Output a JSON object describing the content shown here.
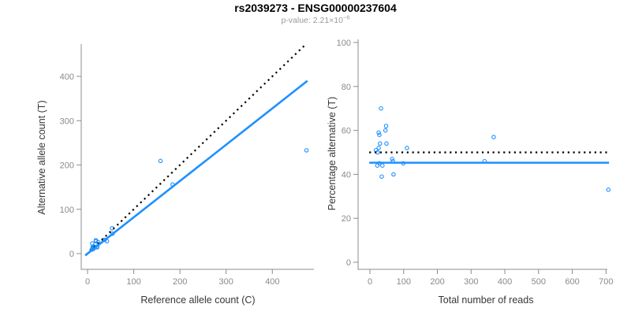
{
  "title": "rs2039273 - ENSG00000237604",
  "subtitle": {
    "prefix": "p-value: 2.21×10",
    "exponent": "−6"
  },
  "colors": {
    "accent_blue": "#1E90FF",
    "reference_line_black": "#000000",
    "axis_gray": "#8C8C8C",
    "tick_label_gray": "#8A8A8A",
    "axis_title_color": "#373737",
    "subtitle_gray": "#9A9A9A",
    "title_color": "#000000",
    "background": "#FFFFFF"
  },
  "chart_data": [
    {
      "type": "scatter",
      "panel": "left",
      "xlabel": "Reference allele count (C)",
      "ylabel": "Alternative allele count (T)",
      "xticks": [
        0,
        100,
        200,
        300,
        400
      ],
      "yticks": [
        0,
        100,
        200,
        300,
        400
      ],
      "xlim": [
        0,
        475
      ],
      "ylim": [
        0,
        470
      ],
      "grid": false,
      "marker": "open-circle",
      "points": [
        [
          10,
          23
        ],
        [
          18,
          30
        ],
        [
          18,
          28
        ],
        [
          11,
          15
        ],
        [
          12,
          16
        ],
        [
          14,
          16
        ],
        [
          23,
          26
        ],
        [
          12,
          14
        ],
        [
          9,
          9
        ],
        [
          11,
          12
        ],
        [
          53,
          57
        ],
        [
          35,
          31
        ],
        [
          37,
          31
        ],
        [
          15,
          13
        ],
        [
          21,
          16
        ],
        [
          12,
          10
        ],
        [
          54,
          45
        ],
        [
          21,
          14
        ],
        [
          42,
          28
        ],
        [
          184,
          156
        ],
        [
          158,
          209
        ],
        [
          474,
          233
        ]
      ],
      "identity_line": {
        "style": "dotted",
        "color": "black",
        "slope": 1,
        "from": [
          -3,
          -3
        ],
        "to": [
          470,
          470
        ]
      },
      "fit_line": {
        "style": "solid",
        "color": "blue",
        "slope": 0.82,
        "from": [
          -5,
          -4.1
        ],
        "to": [
          476,
          390
        ]
      }
    },
    {
      "type": "scatter",
      "panel": "right",
      "xlabel": "Total number of reads",
      "ylabel": "Percentage alternative (T)",
      "xticks": [
        0,
        100,
        200,
        300,
        400,
        500,
        600,
        700
      ],
      "yticks": [
        0,
        20,
        40,
        60,
        80,
        100
      ],
      "xlim": [
        0,
        710
      ],
      "ylim": [
        0,
        100
      ],
      "grid": false,
      "marker": "open-circle",
      "points": [
        [
          33,
          70
        ],
        [
          48,
          62
        ],
        [
          46,
          60
        ],
        [
          26,
          59
        ],
        [
          28,
          58
        ],
        [
          30,
          54
        ],
        [
          49,
          54
        ],
        [
          26,
          52
        ],
        [
          18,
          51
        ],
        [
          23,
          50
        ],
        [
          110,
          52
        ],
        [
          66,
          47
        ],
        [
          68,
          46
        ],
        [
          28,
          45
        ],
        [
          37,
          44
        ],
        [
          22,
          44
        ],
        [
          99,
          45
        ],
        [
          70,
          40
        ],
        [
          35,
          39
        ],
        [
          340,
          46
        ],
        [
          367,
          57
        ],
        [
          707,
          33
        ]
      ],
      "null_line": {
        "style": "dotted",
        "color": "black",
        "y": 50,
        "x_from": -2,
        "x_to": 709
      },
      "fit_line": {
        "style": "solid",
        "color": "blue",
        "y": 45.3,
        "x_from": -2,
        "x_to": 709
      }
    }
  ]
}
